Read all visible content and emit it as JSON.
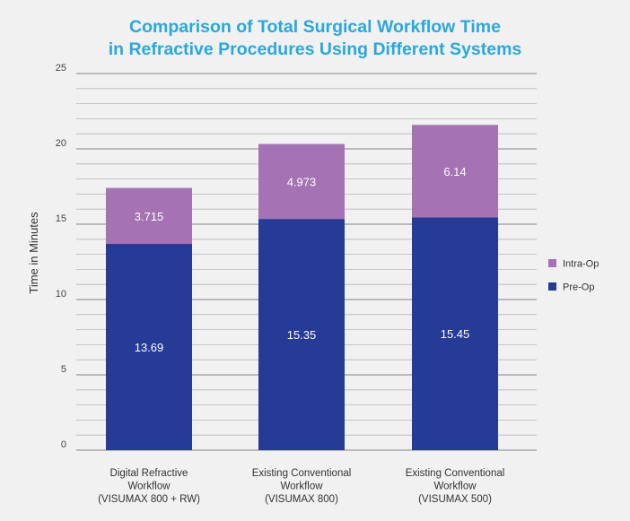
{
  "chart_data": {
    "type": "bar",
    "stacked": true,
    "title": "Comparison of Total Surgical Workflow Time\nin Refractive Procedures Using Different Systems",
    "ylabel": "Time in Minutes",
    "xlabel": "",
    "ylim": [
      0,
      25
    ],
    "yticks": [
      0,
      5,
      10,
      15,
      20,
      25
    ],
    "grid": true,
    "legend_position": "right",
    "categories": [
      [
        "Digital Refractive",
        "Workflow",
        "(VISUMAX 800 + RW)"
      ],
      [
        "Existing Conventional",
        "Workflow",
        "(VISUMAX 800)"
      ],
      [
        "Existing Conventional",
        "Workflow",
        "(VISUMAX 500)"
      ]
    ],
    "series": [
      {
        "name": "Pre-Op",
        "color": "#253b96",
        "values": [
          13.69,
          15.35,
          15.45
        ],
        "labels": [
          "13.69",
          "15.35",
          "15.45"
        ]
      },
      {
        "name": "Intra-Op",
        "color": "#a572b4",
        "values": [
          3.715,
          4.973,
          6.14
        ],
        "labels": [
          "3.715",
          "4.973",
          "6.14"
        ]
      }
    ],
    "legend": [
      {
        "name": "Intra-Op",
        "color": "#a572b4"
      },
      {
        "name": "Pre-Op",
        "color": "#253b96"
      }
    ]
  }
}
